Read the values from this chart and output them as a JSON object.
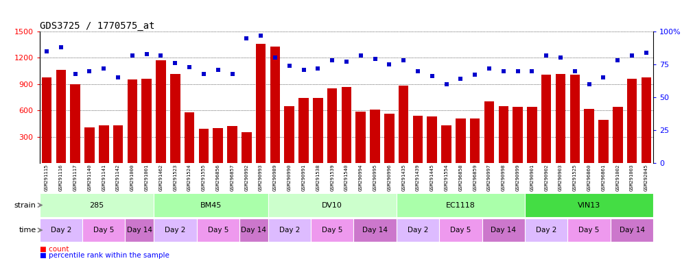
{
  "title": "GDS3725 / 1770575_at",
  "samples": [
    "GSM291115",
    "GSM291116",
    "GSM291117",
    "GSM291140",
    "GSM291141",
    "GSM291142",
    "GSM291000",
    "GSM291001",
    "GSM291462",
    "GSM291523",
    "GSM291524",
    "GSM291555",
    "GSM296856",
    "GSM296857",
    "GSM290992",
    "GSM290993",
    "GSM290989",
    "GSM290990",
    "GSM290991",
    "GSM291538",
    "GSM291539",
    "GSM291540",
    "GSM290994",
    "GSM290995",
    "GSM290996",
    "GSM291435",
    "GSM291439",
    "GSM291445",
    "GSM291554",
    "GSM296858",
    "GSM296859",
    "GSM290997",
    "GSM290998",
    "GSM290999",
    "GSM290901",
    "GSM290902",
    "GSM290903",
    "GSM291525",
    "GSM296860",
    "GSM296861",
    "GSM291002",
    "GSM291003",
    "GSM292045"
  ],
  "count_values": [
    980,
    1060,
    900,
    410,
    430,
    430,
    950,
    960,
    1170,
    1020,
    580,
    390,
    400,
    420,
    350,
    1360,
    1330,
    650,
    740,
    740,
    855,
    870,
    590,
    610,
    565,
    880,
    540,
    530,
    430,
    510,
    510,
    700,
    650,
    640,
    640,
    1010,
    1020,
    1010,
    620,
    490,
    640,
    960,
    980
  ],
  "percentile_values": [
    85,
    88,
    68,
    70,
    72,
    65,
    82,
    83,
    82,
    76,
    73,
    68,
    71,
    68,
    95,
    97,
    80,
    74,
    71,
    72,
    78,
    77,
    82,
    79,
    75,
    78,
    70,
    66,
    60,
    64,
    67,
    72,
    70,
    70,
    70,
    82,
    80,
    70,
    60,
    65,
    78,
    82,
    84
  ],
  "strains": [
    {
      "label": "285",
      "start": 0,
      "end": 8,
      "color": "#ccffcc"
    },
    {
      "label": "BM45",
      "start": 8,
      "end": 16,
      "color": "#aaffaa"
    },
    {
      "label": "DV10",
      "start": 16,
      "end": 25,
      "color": "#ccffcc"
    },
    {
      "label": "EC1118",
      "start": 25,
      "end": 34,
      "color": "#aaffaa"
    },
    {
      "label": "VIN13",
      "start": 34,
      "end": 43,
      "color": "#44dd44"
    }
  ],
  "times": [
    {
      "label": "Day 2",
      "start": 0,
      "end": 3,
      "color": "#ddbbff"
    },
    {
      "label": "Day 5",
      "start": 3,
      "end": 6,
      "color": "#ee99ee"
    },
    {
      "label": "Day 14",
      "start": 6,
      "end": 8,
      "color": "#cc77cc"
    },
    {
      "label": "Day 2",
      "start": 8,
      "end": 11,
      "color": "#ddbbff"
    },
    {
      "label": "Day 5",
      "start": 11,
      "end": 14,
      "color": "#ee99ee"
    },
    {
      "label": "Day 14",
      "start": 14,
      "end": 16,
      "color": "#cc77cc"
    },
    {
      "label": "Day 2",
      "start": 16,
      "end": 19,
      "color": "#ddbbff"
    },
    {
      "label": "Day 5",
      "start": 19,
      "end": 22,
      "color": "#ee99ee"
    },
    {
      "label": "Day 14",
      "start": 22,
      "end": 25,
      "color": "#cc77cc"
    },
    {
      "label": "Day 2",
      "start": 25,
      "end": 28,
      "color": "#ddbbff"
    },
    {
      "label": "Day 5",
      "start": 28,
      "end": 31,
      "color": "#ee99ee"
    },
    {
      "label": "Day 14",
      "start": 31,
      "end": 34,
      "color": "#cc77cc"
    },
    {
      "label": "Day 2",
      "start": 34,
      "end": 37,
      "color": "#ddbbff"
    },
    {
      "label": "Day 5",
      "start": 37,
      "end": 40,
      "color": "#ee99ee"
    },
    {
      "label": "Day 14",
      "start": 40,
      "end": 43,
      "color": "#cc77cc"
    }
  ],
  "ylim_left": [
    0,
    1500
  ],
  "ylim_right": [
    0,
    100
  ],
  "yticks_left": [
    300,
    600,
    900,
    1200,
    1500
  ],
  "yticks_right": [
    0,
    25,
    50,
    75,
    100
  ],
  "bar_color": "#cc0000",
  "dot_color": "#0000cc",
  "background_color": "#ffffff",
  "axis_bg_color": "#ffffff",
  "title_fontsize": 10,
  "n_samples": 43
}
